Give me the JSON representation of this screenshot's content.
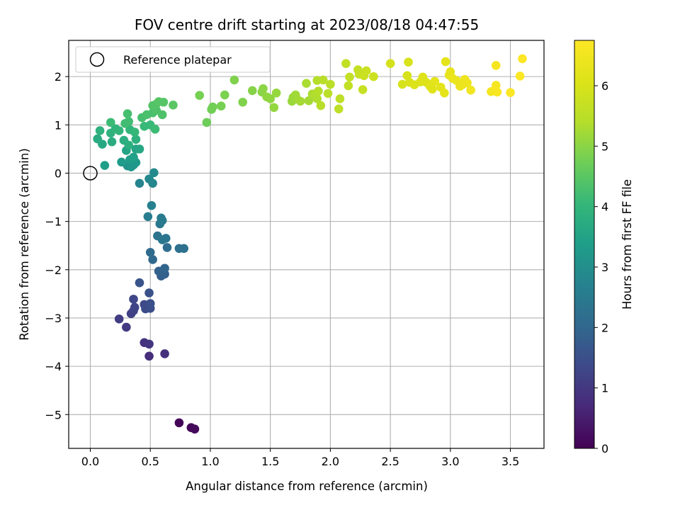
{
  "chart_data": {
    "type": "scatter",
    "title": "FOV centre drift starting at 2023/08/18 04:47:55",
    "xlabel": "Angular distance from reference (arcmin)",
    "ylabel": "Rotation from reference (arcmin)",
    "xlim": [
      -0.18,
      3.78
    ],
    "ylim": [
      -5.7,
      2.75
    ],
    "xticks": [
      0.0,
      0.5,
      1.0,
      1.5,
      2.0,
      2.5,
      3.0,
      3.5
    ],
    "xtick_labels": [
      "0.0",
      "0.5",
      "1.0",
      "1.5",
      "2.0",
      "2.5",
      "3.0",
      "3.5"
    ],
    "yticks": [
      -5,
      -4,
      -3,
      -2,
      -1,
      0,
      1,
      2
    ],
    "ytick_labels": [
      "−5",
      "−4",
      "−3",
      "−2",
      "−1",
      "0",
      "1",
      "2"
    ],
    "grid": true,
    "colormap": "viridis",
    "colorbar": {
      "label": "Hours from first FF file",
      "range": [
        0,
        6.75
      ],
      "ticks": [
        0,
        1,
        2,
        3,
        4,
        5,
        6
      ],
      "tick_labels": [
        "0",
        "1",
        "2",
        "3",
        "4",
        "5",
        "6"
      ]
    },
    "legend": {
      "placement": "top-left",
      "entries": [
        "Reference platepar"
      ]
    },
    "reference_point": {
      "x": 0.0,
      "y": 0.0
    },
    "points": [
      {
        "x": 0.74,
        "y": -5.17,
        "c": 0.05
      },
      {
        "x": 0.84,
        "y": -5.27,
        "c": 0.1
      },
      {
        "x": 0.87,
        "y": -5.3,
        "c": 0.15
      },
      {
        "x": 0.49,
        "y": -3.79,
        "c": 0.8
      },
      {
        "x": 0.62,
        "y": -3.74,
        "c": 0.85
      },
      {
        "x": 0.45,
        "y": -3.51,
        "c": 0.9
      },
      {
        "x": 0.49,
        "y": -3.54,
        "c": 0.95
      },
      {
        "x": 0.3,
        "y": -3.19,
        "c": 1.05
      },
      {
        "x": 0.24,
        "y": -3.02,
        "c": 1.1
      },
      {
        "x": 0.34,
        "y": -2.91,
        "c": 1.15
      },
      {
        "x": 0.36,
        "y": -2.85,
        "c": 1.2
      },
      {
        "x": 0.37,
        "y": -2.78,
        "c": 1.25
      },
      {
        "x": 0.36,
        "y": -2.61,
        "c": 1.3
      },
      {
        "x": 0.45,
        "y": -2.72,
        "c": 1.35
      },
      {
        "x": 0.46,
        "y": -2.81,
        "c": 1.4
      },
      {
        "x": 0.5,
        "y": -2.8,
        "c": 1.45
      },
      {
        "x": 0.5,
        "y": -2.7,
        "c": 1.5
      },
      {
        "x": 0.49,
        "y": -2.48,
        "c": 1.55
      },
      {
        "x": 0.41,
        "y": -2.27,
        "c": 1.6
      },
      {
        "x": 0.59,
        "y": -2.13,
        "c": 1.8
      },
      {
        "x": 0.62,
        "y": -2.09,
        "c": 1.85
      },
      {
        "x": 0.57,
        "y": -2.03,
        "c": 1.9
      },
      {
        "x": 0.62,
        "y": -1.97,
        "c": 1.95
      },
      {
        "x": 0.52,
        "y": -1.79,
        "c": 2.05
      },
      {
        "x": 0.5,
        "y": -1.64,
        "c": 2.1
      },
      {
        "x": 0.64,
        "y": -1.54,
        "c": 2.15
      },
      {
        "x": 0.74,
        "y": -1.56,
        "c": 2.2
      },
      {
        "x": 0.78,
        "y": -1.56,
        "c": 2.25
      },
      {
        "x": 0.56,
        "y": -1.3,
        "c": 2.3
      },
      {
        "x": 0.63,
        "y": -1.35,
        "c": 2.35
      },
      {
        "x": 0.6,
        "y": -1.38,
        "c": 2.4
      },
      {
        "x": 0.58,
        "y": -1.05,
        "c": 2.45
      },
      {
        "x": 0.6,
        "y": -0.98,
        "c": 2.5
      },
      {
        "x": 0.59,
        "y": -0.93,
        "c": 2.55
      },
      {
        "x": 0.48,
        "y": -0.9,
        "c": 2.6
      },
      {
        "x": 0.51,
        "y": -0.67,
        "c": 2.65
      },
      {
        "x": 0.41,
        "y": -0.21,
        "c": 2.75
      },
      {
        "x": 0.52,
        "y": -0.21,
        "c": 2.8
      },
      {
        "x": 0.49,
        "y": -0.12,
        "c": 2.85
      },
      {
        "x": 0.53,
        "y": 0.01,
        "c": 2.9
      },
      {
        "x": 0.31,
        "y": 0.15,
        "c": 3.1
      },
      {
        "x": 0.34,
        "y": 0.13,
        "c": 3.15
      },
      {
        "x": 0.36,
        "y": 0.17,
        "c": 3.2
      },
      {
        "x": 0.38,
        "y": 0.22,
        "c": 3.25
      },
      {
        "x": 0.26,
        "y": 0.23,
        "c": 3.3
      },
      {
        "x": 0.33,
        "y": 0.28,
        "c": 3.35
      },
      {
        "x": 0.12,
        "y": 0.16,
        "c": 3.4
      },
      {
        "x": 0.36,
        "y": 0.33,
        "c": 3.45
      },
      {
        "x": 0.3,
        "y": 0.47,
        "c": 3.5
      },
      {
        "x": 0.38,
        "y": 0.5,
        "c": 3.55
      },
      {
        "x": 0.41,
        "y": 0.5,
        "c": 3.6
      },
      {
        "x": 0.1,
        "y": 0.6,
        "c": 3.65
      },
      {
        "x": 0.06,
        "y": 0.71,
        "c": 3.7
      },
      {
        "x": 0.18,
        "y": 0.65,
        "c": 3.75
      },
      {
        "x": 0.28,
        "y": 0.68,
        "c": 3.8
      },
      {
        "x": 0.38,
        "y": 0.7,
        "c": 3.85
      },
      {
        "x": 0.32,
        "y": 0.58,
        "c": 3.8
      },
      {
        "x": 0.08,
        "y": 0.88,
        "c": 3.9
      },
      {
        "x": 0.17,
        "y": 0.83,
        "c": 3.9
      },
      {
        "x": 0.21,
        "y": 0.92,
        "c": 3.95
      },
      {
        "x": 0.24,
        "y": 0.88,
        "c": 4.0
      },
      {
        "x": 0.33,
        "y": 0.9,
        "c": 4.0
      },
      {
        "x": 0.37,
        "y": 0.85,
        "c": 4.05
      },
      {
        "x": 0.45,
        "y": 0.97,
        "c": 4.1
      },
      {
        "x": 0.5,
        "y": 1.0,
        "c": 4.1
      },
      {
        "x": 0.54,
        "y": 0.91,
        "c": 4.15
      },
      {
        "x": 0.17,
        "y": 1.05,
        "c": 4.15
      },
      {
        "x": 0.29,
        "y": 1.03,
        "c": 4.2
      },
      {
        "x": 0.32,
        "y": 1.07,
        "c": 4.2
      },
      {
        "x": 0.31,
        "y": 1.23,
        "c": 4.25
      },
      {
        "x": 0.43,
        "y": 1.15,
        "c": 4.25
      },
      {
        "x": 0.47,
        "y": 1.21,
        "c": 4.3
      },
      {
        "x": 0.52,
        "y": 1.25,
        "c": 4.3
      },
      {
        "x": 0.55,
        "y": 1.3,
        "c": 4.35
      },
      {
        "x": 0.6,
        "y": 1.21,
        "c": 4.35
      },
      {
        "x": 0.52,
        "y": 1.4,
        "c": 4.4
      },
      {
        "x": 0.55,
        "y": 1.43,
        "c": 4.4
      },
      {
        "x": 0.57,
        "y": 1.48,
        "c": 4.45
      },
      {
        "x": 0.61,
        "y": 1.47,
        "c": 4.45
      },
      {
        "x": 0.69,
        "y": 1.41,
        "c": 4.5
      },
      {
        "x": 0.97,
        "y": 1.05,
        "c": 4.7
      },
      {
        "x": 1.01,
        "y": 1.32,
        "c": 4.75
      },
      {
        "x": 1.02,
        "y": 1.37,
        "c": 4.75
      },
      {
        "x": 1.09,
        "y": 1.39,
        "c": 4.8
      },
      {
        "x": 0.91,
        "y": 1.61,
        "c": 4.8
      },
      {
        "x": 1.12,
        "y": 1.62,
        "c": 4.85
      },
      {
        "x": 1.27,
        "y": 1.47,
        "c": 4.9
      },
      {
        "x": 1.2,
        "y": 1.93,
        "c": 4.9
      },
      {
        "x": 1.35,
        "y": 1.71,
        "c": 4.95
      },
      {
        "x": 1.43,
        "y": 1.68,
        "c": 5.0
      },
      {
        "x": 1.44,
        "y": 1.75,
        "c": 5.0
      },
      {
        "x": 1.47,
        "y": 1.58,
        "c": 5.05
      },
      {
        "x": 1.5,
        "y": 1.54,
        "c": 5.05
      },
      {
        "x": 1.53,
        "y": 1.36,
        "c": 5.1
      },
      {
        "x": 1.55,
        "y": 1.66,
        "c": 5.1
      },
      {
        "x": 1.68,
        "y": 1.49,
        "c": 5.15
      },
      {
        "x": 1.69,
        "y": 1.57,
        "c": 5.15
      },
      {
        "x": 1.71,
        "y": 1.62,
        "c": 5.2
      },
      {
        "x": 1.72,
        "y": 1.54,
        "c": 5.2
      },
      {
        "x": 1.75,
        "y": 1.49,
        "c": 5.25
      },
      {
        "x": 1.82,
        "y": 1.5,
        "c": 5.25
      },
      {
        "x": 1.8,
        "y": 1.86,
        "c": 5.3
      },
      {
        "x": 1.85,
        "y": 1.64,
        "c": 5.3
      },
      {
        "x": 1.87,
        "y": 1.62,
        "c": 5.35
      },
      {
        "x": 1.89,
        "y": 1.54,
        "c": 5.35
      },
      {
        "x": 1.89,
        "y": 1.92,
        "c": 5.4
      },
      {
        "x": 1.9,
        "y": 1.7,
        "c": 5.4
      },
      {
        "x": 1.92,
        "y": 1.4,
        "c": 5.45
      },
      {
        "x": 1.94,
        "y": 1.93,
        "c": 5.45
      },
      {
        "x": 1.98,
        "y": 1.65,
        "c": 5.5
      },
      {
        "x": 2.0,
        "y": 1.84,
        "c": 5.5
      },
      {
        "x": 2.07,
        "y": 1.33,
        "c": 5.55
      },
      {
        "x": 2.08,
        "y": 1.54,
        "c": 5.55
      },
      {
        "x": 2.13,
        "y": 2.27,
        "c": 5.6
      },
      {
        "x": 2.15,
        "y": 1.81,
        "c": 5.6
      },
      {
        "x": 2.16,
        "y": 1.99,
        "c": 5.65
      },
      {
        "x": 2.23,
        "y": 2.14,
        "c": 5.65
      },
      {
        "x": 2.24,
        "y": 2.05,
        "c": 5.7
      },
      {
        "x": 2.27,
        "y": 1.73,
        "c": 5.7
      },
      {
        "x": 2.28,
        "y": 2.02,
        "c": 5.75
      },
      {
        "x": 2.3,
        "y": 2.12,
        "c": 5.75
      },
      {
        "x": 2.36,
        "y": 2.0,
        "c": 5.8
      },
      {
        "x": 2.5,
        "y": 2.27,
        "c": 5.9
      },
      {
        "x": 2.6,
        "y": 1.84,
        "c": 5.95
      },
      {
        "x": 2.64,
        "y": 2.02,
        "c": 5.95
      },
      {
        "x": 2.65,
        "y": 2.3,
        "c": 6.0
      },
      {
        "x": 2.66,
        "y": 1.88,
        "c": 6.0
      },
      {
        "x": 2.7,
        "y": 1.83,
        "c": 6.05
      },
      {
        "x": 2.75,
        "y": 1.89,
        "c": 6.05
      },
      {
        "x": 2.77,
        "y": 1.99,
        "c": 6.1
      },
      {
        "x": 2.8,
        "y": 1.88,
        "c": 6.1
      },
      {
        "x": 2.83,
        "y": 1.8,
        "c": 6.15
      },
      {
        "x": 2.85,
        "y": 1.74,
        "c": 6.15
      },
      {
        "x": 2.87,
        "y": 1.9,
        "c": 6.2
      },
      {
        "x": 2.92,
        "y": 1.78,
        "c": 6.2
      },
      {
        "x": 2.95,
        "y": 1.66,
        "c": 6.25
      },
      {
        "x": 2.96,
        "y": 2.31,
        "c": 6.25
      },
      {
        "x": 2.99,
        "y": 2.03,
        "c": 6.3
      },
      {
        "x": 3.0,
        "y": 2.1,
        "c": 6.3
      },
      {
        "x": 3.02,
        "y": 1.96,
        "c": 6.35
      },
      {
        "x": 3.05,
        "y": 1.92,
        "c": 6.35
      },
      {
        "x": 3.08,
        "y": 1.8,
        "c": 6.4
      },
      {
        "x": 3.1,
        "y": 1.83,
        "c": 6.4
      },
      {
        "x": 3.12,
        "y": 1.94,
        "c": 6.45
      },
      {
        "x": 3.14,
        "y": 1.87,
        "c": 6.45
      },
      {
        "x": 3.17,
        "y": 1.72,
        "c": 6.5
      },
      {
        "x": 3.34,
        "y": 1.69,
        "c": 6.55
      },
      {
        "x": 3.38,
        "y": 1.82,
        "c": 6.6
      },
      {
        "x": 3.38,
        "y": 2.23,
        "c": 6.6
      },
      {
        "x": 3.39,
        "y": 1.68,
        "c": 6.65
      },
      {
        "x": 3.5,
        "y": 1.67,
        "c": 6.7
      },
      {
        "x": 3.58,
        "y": 2.01,
        "c": 6.72
      },
      {
        "x": 3.6,
        "y": 2.37,
        "c": 6.75
      }
    ]
  }
}
